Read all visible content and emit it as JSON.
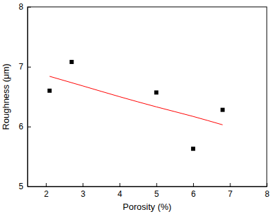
{
  "chart_data": {
    "type": "scatter",
    "x_label": "Porosity (%)",
    "y_label": "Roughness (μm)",
    "xlim": [
      1.5,
      8
    ],
    "xticks": [
      2,
      3,
      4,
      5,
      6,
      7,
      8
    ],
    "ylim": [
      5,
      8
    ],
    "yticks": [
      5,
      6,
      7,
      8
    ],
    "grid": false,
    "series": [
      {
        "type": "scatter",
        "marker": "square",
        "color": "#000000",
        "x": [
          2.1,
          2.7,
          5.0,
          6.0,
          6.8
        ],
        "values": [
          6.6,
          7.08,
          6.57,
          5.63,
          6.28
        ]
      },
      {
        "type": "line",
        "line_style": "solid",
        "color": "#ff0000",
        "x": [
          2.1,
          3,
          4,
          5,
          6,
          6.8
        ],
        "values": [
          6.84,
          6.68,
          6.5,
          6.33,
          6.17,
          6.03
        ]
      }
    ]
  }
}
